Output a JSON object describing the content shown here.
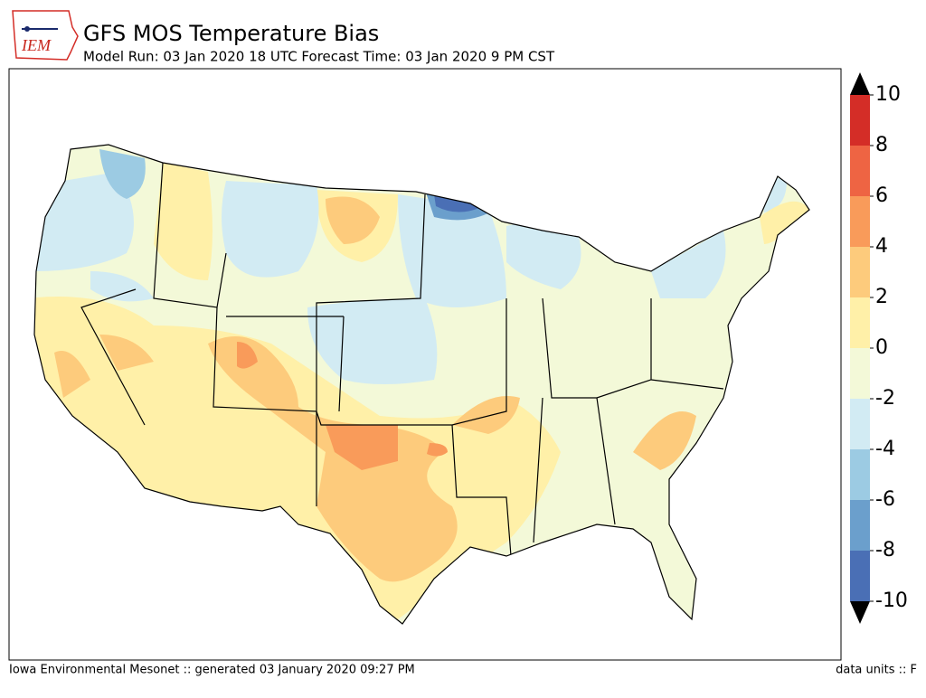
{
  "header": {
    "logo_text": "IEM",
    "title": "GFS MOS Temperature Bias",
    "subtitle": "Model Run: 03 Jan 2020 18 UTC Forecast Time: 03 Jan 2020 9 PM CST"
  },
  "colorbar": {
    "ticks": [
      -10,
      -8,
      -6,
      -4,
      -2,
      0,
      2,
      4,
      6,
      8,
      10
    ],
    "colors": [
      "#4a6fb5",
      "#6b9fcc",
      "#9ccbe3",
      "#d2ebf3",
      "#f3f9d8",
      "#fff0a8",
      "#fdcb7c",
      "#f99b5a",
      "#ee6443",
      "#d42d27"
    ]
  },
  "footer": {
    "left": "Iowa Environmental Mesonet :: generated 03 January 2020 09:27 PM",
    "right": "data units :: F"
  }
}
